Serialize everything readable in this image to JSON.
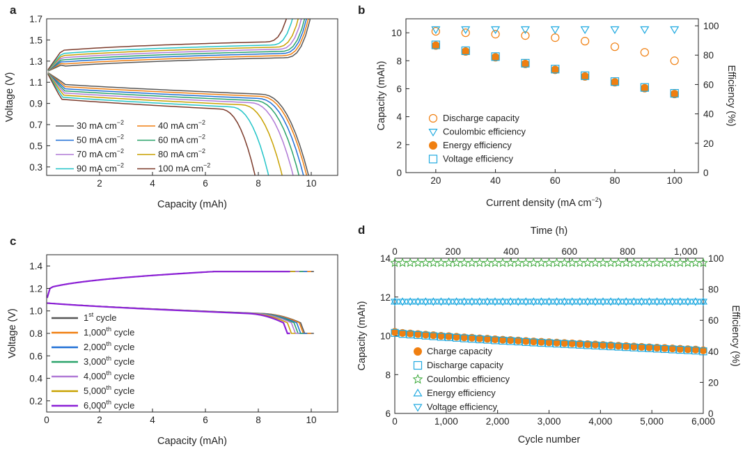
{
  "figure": {
    "panels": [
      "a",
      "b",
      "c",
      "d"
    ]
  },
  "chart_data": [
    {
      "panel": "a",
      "type": "line",
      "xlabel": "Capacity (mAh)",
      "ylabel": "Voltage (V)",
      "xlim": [
        0,
        11
      ],
      "ylim": [
        0.22,
        1.7
      ],
      "xticks": [
        2,
        4,
        6,
        8,
        10
      ],
      "yticks": [
        0.3,
        0.5,
        0.7,
        0.9,
        1.1,
        1.3,
        1.5,
        1.7
      ],
      "series": [
        {
          "name": "30 mA cm⁻²",
          "unit": "mA cm",
          "sup": "−2",
          "current": "30",
          "color": "#555555",
          "charge_cap": 9.95,
          "discharge_cap": 9.9,
          "charge_v": 1.28,
          "discharge_v": 1.09
        },
        {
          "name": "40 mA cm⁻²",
          "unit": "mA cm",
          "sup": "−2",
          "current": "40",
          "color": "#f07f10",
          "charge_cap": 9.9,
          "discharge_cap": 9.85,
          "charge_v": 1.3,
          "discharge_v": 1.07
        },
        {
          "name": "50 mA cm⁻²",
          "unit": "mA cm",
          "sup": "−2",
          "current": "50",
          "color": "#1f6fd6",
          "charge_cap": 9.85,
          "discharge_cap": 9.75,
          "charge_v": 1.32,
          "discharge_v": 1.05
        },
        {
          "name": "60 mA cm⁻²",
          "unit": "mA cm",
          "sup": "−2",
          "current": "60",
          "color": "#2aa36a",
          "charge_cap": 9.8,
          "discharge_cap": 9.6,
          "charge_v": 1.34,
          "discharge_v": 1.03
        },
        {
          "name": "70 mA cm⁻²",
          "unit": "mA cm",
          "sup": "−2",
          "current": "70",
          "color": "#b07ad6",
          "charge_cap": 9.7,
          "discharge_cap": 9.4,
          "charge_v": 1.36,
          "discharge_v": 1.01
        },
        {
          "name": "80 mA cm⁻²",
          "unit": "mA cm",
          "sup": "−2",
          "current": "80",
          "color": "#c8a100",
          "charge_cap": 9.6,
          "discharge_cap": 9.0,
          "charge_v": 1.38,
          "discharge_v": 0.99
        },
        {
          "name": "90 mA cm⁻²",
          "unit": "mA cm",
          "sup": "−2",
          "current": "90",
          "color": "#22c4c8",
          "charge_cap": 9.4,
          "discharge_cap": 8.5,
          "charge_v": 1.4,
          "discharge_v": 0.97
        },
        {
          "name": "100 mA cm⁻²",
          "unit": "mA cm",
          "sup": "−2",
          "current": "100",
          "color": "#7b3a2a",
          "charge_cap": 9.2,
          "discharge_cap": 8.0,
          "charge_v": 1.43,
          "discharge_v": 0.95
        }
      ]
    },
    {
      "panel": "b",
      "type": "scatter",
      "xlabel": "Current density (mA cm",
      "xlabel_sup": "−2",
      "xlabel_end": ")",
      "ylabel": "Capacity (mAh)",
      "y2label": "Efficiency (%)",
      "xlim": [
        10,
        108
      ],
      "ylim": [
        0,
        11
      ],
      "y2lim": [
        0,
        104.76
      ],
      "xticks": [
        20,
        40,
        60,
        80,
        100
      ],
      "yticks": [
        0,
        2,
        4,
        6,
        8,
        10
      ],
      "y2ticks": [
        0,
        20,
        40,
        60,
        80,
        100
      ],
      "x": [
        20,
        30,
        40,
        50,
        60,
        70,
        80,
        90,
        100
      ],
      "series": [
        {
          "name": "Discharge capacity",
          "axis": "left",
          "marker": "circle-open",
          "color": "#f07f10",
          "values": [
            10.1,
            10.0,
            9.9,
            9.8,
            9.65,
            9.4,
            9.0,
            8.6,
            8.0
          ]
        },
        {
          "name": "Coulombic efficiency",
          "axis": "right",
          "marker": "triangle-down-open",
          "color": "#1ea9e0",
          "values": [
            97.5,
            97.5,
            97.5,
            97.5,
            97.5,
            97.5,
            97.5,
            97.5,
            97.5
          ]
        },
        {
          "name": "Energy efficiency",
          "axis": "right",
          "marker": "circle-filled",
          "color": "#f07f10",
          "values": [
            86.5,
            82.5,
            78.5,
            74.0,
            70.0,
            65.5,
            61.5,
            57.5,
            53.5
          ]
        },
        {
          "name": "Voltage efficiency",
          "axis": "right",
          "marker": "square-open",
          "color": "#1ea9e0",
          "values": [
            87.0,
            83.0,
            79.0,
            74.5,
            70.5,
            66.0,
            62.0,
            58.0,
            54.0
          ]
        }
      ]
    },
    {
      "panel": "c",
      "type": "line",
      "xlabel": "Capacity (mAh)",
      "ylabel": "Voltage (V)",
      "xlim": [
        0,
        11
      ],
      "ylim": [
        0.1,
        1.5
      ],
      "xticks": [
        0,
        2,
        4,
        6,
        8,
        10
      ],
      "yticks": [
        0.2,
        0.4,
        0.6,
        0.8,
        1.0,
        1.2,
        1.4
      ],
      "series": [
        {
          "name": "1st cycle",
          "num": "1",
          "sup": "st",
          "color": "#555555",
          "charge_end": 10.1,
          "discharge_knee": 9.6
        },
        {
          "name": "1,000th cycle",
          "num": "1,000",
          "sup": "th",
          "color": "#f07f10",
          "charge_end": 10.0,
          "discharge_knee": 9.55
        },
        {
          "name": "2,000th cycle",
          "num": "2,000",
          "sup": "th",
          "color": "#1f6fd6",
          "charge_end": 9.85,
          "discharge_knee": 9.45
        },
        {
          "name": "3,000th cycle",
          "num": "3,000",
          "sup": "th",
          "color": "#2aa36a",
          "charge_end": 9.7,
          "discharge_knee": 9.35
        },
        {
          "name": "4,000th cycle",
          "num": "4,000",
          "sup": "th",
          "color": "#b07ad6",
          "charge_end": 9.55,
          "discharge_knee": 9.25
        },
        {
          "name": "5,000th cycle",
          "num": "5,000",
          "sup": "th",
          "color": "#c8a100",
          "charge_end": 9.4,
          "discharge_knee": 9.1
        },
        {
          "name": "6,000th cycle",
          "num": "6,000",
          "sup": "th",
          "color": "#8b1fd6",
          "charge_end": 9.2,
          "discharge_knee": 8.95
        }
      ]
    },
    {
      "panel": "d",
      "type": "scatter",
      "xlabel": "Cycle number",
      "x2label": "Time (h)",
      "ylabel": "Capacity (mAh)",
      "y2label": "Efficiency (%)",
      "xlim": [
        0,
        6000
      ],
      "ylim": [
        6,
        14
      ],
      "y2lim": [
        0,
        100
      ],
      "xticks": [
        0,
        1000,
        2000,
        3000,
        4000,
        5000,
        6000
      ],
      "xticklabels": [
        "0",
        "1,000",
        "2,000",
        "3,000",
        "4,000",
        "5,000",
        "6,000"
      ],
      "x2ticks": [
        0,
        200,
        400,
        600,
        800,
        1000
      ],
      "x2ticklabels": [
        "0",
        "200",
        "400",
        "600",
        "800",
        "1,000"
      ],
      "x2max_hours": 1060,
      "yticks": [
        6,
        8,
        10,
        12,
        14
      ],
      "y2ticks": [
        0,
        20,
        40,
        60,
        80,
        100
      ],
      "cycles": [
        0,
        150,
        300,
        450,
        600,
        750,
        900,
        1050,
        1200,
        1350,
        1500,
        1650,
        1800,
        1950,
        2100,
        2250,
        2400,
        2550,
        2700,
        2850,
        3000,
        3150,
        3300,
        3450,
        3600,
        3750,
        3900,
        4050,
        4200,
        4350,
        4500,
        4650,
        4800,
        4950,
        5100,
        5250,
        5400,
        5550,
        5700,
        5850,
        6000
      ],
      "series": [
        {
          "name": "Charge capacity",
          "axis": "left",
          "marker": "circle-filled",
          "color": "#f07f10",
          "values": [
            10.2,
            10.15,
            10.12,
            10.09,
            10.06,
            10.03,
            10.0,
            9.98,
            9.95,
            9.92,
            9.9,
            9.87,
            9.85,
            9.82,
            9.8,
            9.78,
            9.76,
            9.73,
            9.71,
            9.69,
            9.67,
            9.65,
            9.63,
            9.61,
            9.59,
            9.57,
            9.55,
            9.53,
            9.51,
            9.49,
            9.47,
            9.45,
            9.43,
            9.41,
            9.39,
            9.37,
            9.35,
            9.33,
            9.31,
            9.29,
            9.25
          ]
        },
        {
          "name": "Discharge capacity",
          "axis": "left",
          "marker": "square-open",
          "color": "#1ea9e0",
          "values": [
            10.15,
            10.1,
            10.07,
            10.04,
            10.01,
            9.98,
            9.95,
            9.93,
            9.9,
            9.87,
            9.85,
            9.82,
            9.8,
            9.77,
            9.75,
            9.73,
            9.71,
            9.68,
            9.66,
            9.64,
            9.62,
            9.6,
            9.58,
            9.56,
            9.54,
            9.52,
            9.5,
            9.48,
            9.46,
            9.44,
            9.42,
            9.4,
            9.38,
            9.36,
            9.34,
            9.32,
            9.3,
            9.28,
            9.26,
            9.24,
            9.2
          ]
        },
        {
          "name": "Coulombic efficiency",
          "axis": "right",
          "marker": "star-open",
          "color": "#3aa838",
          "value": 97
        },
        {
          "name": "Energy efficiency",
          "axis": "right",
          "marker": "triangle-up-open",
          "color": "#1ea9e0",
          "value": 72
        },
        {
          "name": "Voltage efficiency",
          "axis": "right",
          "marker": "triangle-down-open",
          "color": "#1ea9e0",
          "value": 72
        }
      ]
    }
  ]
}
